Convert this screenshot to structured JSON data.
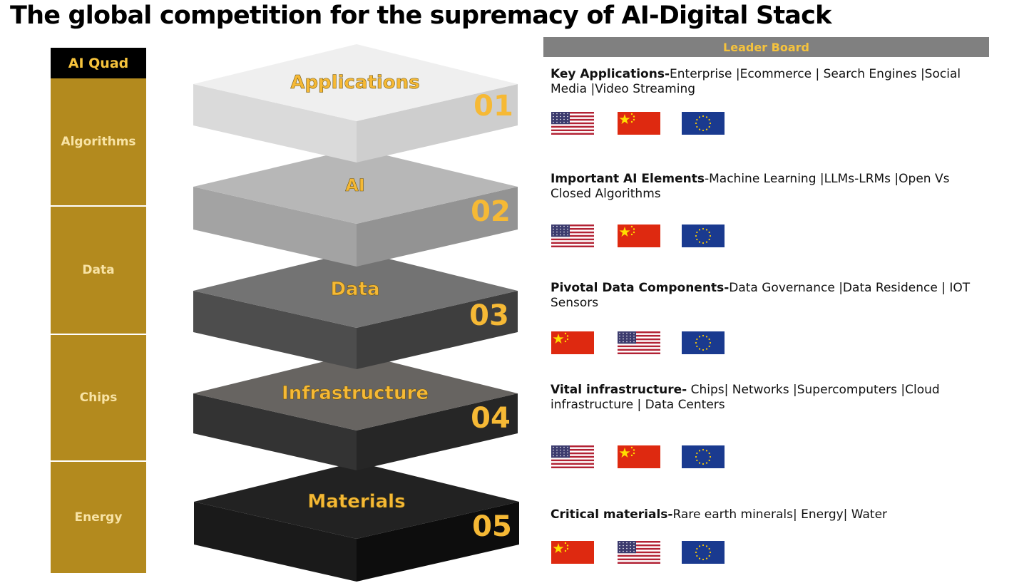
{
  "title": "The global competition for the supremacy of AI-Digital Stack",
  "quad": {
    "header": "AI Quad",
    "items": [
      "Algorithms",
      "Data",
      "Chips",
      "Energy"
    ]
  },
  "stack": {
    "layers": [
      {
        "label": "Applications",
        "number": "01"
      },
      {
        "label": "AI",
        "number": "02"
      },
      {
        "label": "Data",
        "number": "03"
      },
      {
        "label": "Infrastructure",
        "number": "04"
      },
      {
        "label": "Materials",
        "number": "05"
      }
    ]
  },
  "leaderboard": {
    "header": "Leader Board",
    "rows": [
      {
        "key": "Key Applications-",
        "text": "Enterprise |Ecommerce | Search Engines |Social Media |Video Streaming",
        "flags": [
          "us-flag-icon",
          "china-flag-icon",
          "eu-flag-icon"
        ]
      },
      {
        "key": "Important AI Elements",
        "text": "-Machine Learning |LLMs-LRMs |Open Vs Closed Algorithms",
        "flags": [
          "us-flag-icon",
          "china-flag-icon",
          "eu-flag-icon"
        ]
      },
      {
        "key": "Pivotal Data Components-",
        "text": "Data Governance |Data Residence | IOT Sensors",
        "flags": [
          "china-flag-icon",
          "us-flag-icon",
          "eu-flag-icon"
        ]
      },
      {
        "key": "Vital infrastructure-",
        "text": " Chips| Networks |Supercomputers |Cloud infrastructure | Data Centers",
        "flags": [
          "us-flag-icon",
          "china-flag-icon",
          "eu-flag-icon"
        ]
      },
      {
        "key": "Critical materials-",
        "text": "Rare earth minerals| Energy| Water",
        "flags": [
          "china-flag-icon",
          "us-flag-icon",
          "eu-flag-icon"
        ]
      }
    ]
  },
  "colors": {
    "gold": "#b38a1e",
    "label_yellow": "#f6b935"
  }
}
